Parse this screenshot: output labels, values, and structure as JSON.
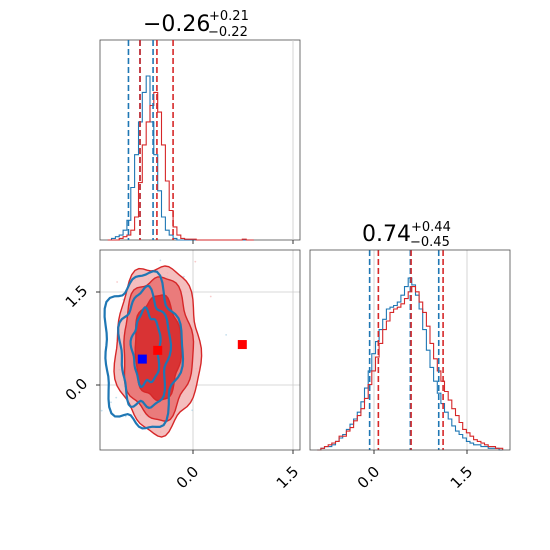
{
  "chart_data": [
    {
      "type": "histogram",
      "panel": "top-left",
      "title_value": "−0.26",
      "title_plus": "+0.21",
      "title_minus": "−0.22",
      "xlim": [
        -1.0,
        1.6
      ],
      "bins": [
        -0.9,
        -0.85,
        -0.8,
        -0.75,
        -0.7,
        -0.65,
        -0.6,
        -0.55,
        -0.5,
        -0.45,
        -0.4,
        -0.35,
        -0.3,
        -0.25,
        -0.2,
        -0.15,
        -0.1,
        -0.05,
        0.0,
        0.05,
        0.1,
        0.15,
        0.2,
        0.25,
        0.3,
        0.35,
        0.4,
        0.45,
        0.5,
        0.55,
        0.6,
        0.65,
        0.7,
        0.75,
        0.8,
        0.85,
        0.9,
        0.95,
        1.0
      ],
      "series": [
        {
          "color": "#1f77b4",
          "values": [
            0,
            0.01,
            0.02,
            0.03,
            0.06,
            0.12,
            0.32,
            0.52,
            0.72,
            0.9,
            1.0,
            0.72,
            0.52,
            0.3,
            0.14,
            0.06,
            0.03,
            0.01,
            0,
            0,
            0,
            0,
            0,
            0,
            0,
            0,
            0,
            0,
            0,
            0,
            0,
            0,
            0,
            0,
            0,
            0,
            0,
            0
          ]
        },
        {
          "color": "#d62728",
          "values": [
            0,
            0,
            0,
            0.01,
            0.02,
            0.03,
            0.06,
            0.14,
            0.35,
            0.58,
            0.72,
            0.82,
            0.9,
            0.78,
            0.58,
            0.36,
            0.18,
            0.08,
            0.03,
            0.01,
            0.005,
            0.005,
            0.005,
            0,
            0,
            0,
            0,
            0,
            0,
            0,
            0,
            0,
            0,
            0,
            0,
            0.005,
            0,
            0
          ]
        }
      ],
      "quantile_lines": [
        {
          "color": "#1f77b4",
          "x": [
            -0.63,
            -0.48,
            -0.31
          ]
        },
        {
          "color": "#d62728",
          "x": [
            -0.48,
            -0.26,
            -0.05
          ]
        }
      ]
    },
    {
      "type": "contour",
      "panel": "bottom-left",
      "xlim": [
        -1.0,
        1.6
      ],
      "ylim": [
        -0.65,
        2.1
      ],
      "yticks": [
        "1.5",
        "0.0"
      ],
      "xticks": [
        "0.0",
        "1.5"
      ],
      "red_levels": [
        {
          "cx": -0.25,
          "cy": 0.75,
          "rx": 0.55,
          "ry": 1.15
        },
        {
          "cx": -0.25,
          "cy": 0.75,
          "rx": 0.45,
          "ry": 0.98
        },
        {
          "cx": -0.25,
          "cy": 0.75,
          "rx": 0.3,
          "ry": 0.72
        }
      ],
      "blue_levels": [
        {
          "cx": -0.45,
          "cy": 0.7,
          "rx": 0.5,
          "ry": 1.05
        },
        {
          "cx": -0.42,
          "cy": 0.72,
          "rx": 0.32,
          "ry": 0.8
        },
        {
          "cx": -0.4,
          "cy": 0.75,
          "rx": 0.18,
          "ry": 0.5
        }
      ],
      "markers": [
        {
          "color": "#ff0000",
          "x": -0.25,
          "y": 0.72
        },
        {
          "color": "#0000ff",
          "x": -0.45,
          "y": 0.6
        },
        {
          "color": "#ff0000",
          "x": 0.85,
          "y": 0.8
        }
      ]
    },
    {
      "type": "histogram",
      "panel": "bottom-right",
      "title_value": "0.74",
      "title_plus": "+0.44",
      "title_minus": "−0.45",
      "xlim": [
        -0.65,
        2.1
      ],
      "xticks": [
        "0.0",
        "1.5"
      ],
      "bins": [
        -0.55,
        -0.5,
        -0.45,
        -0.4,
        -0.35,
        -0.3,
        -0.25,
        -0.2,
        -0.15,
        -0.1,
        -0.05,
        0.0,
        0.05,
        0.1,
        0.15,
        0.2,
        0.25,
        0.3,
        0.35,
        0.4,
        0.45,
        0.5,
        0.55,
        0.6,
        0.65,
        0.7,
        0.75,
        0.8,
        0.85,
        0.9,
        0.95,
        1.0,
        1.05,
        1.1,
        1.15,
        1.2,
        1.25,
        1.3,
        1.35,
        1.4,
        1.45,
        1.5,
        1.55,
        1.6,
        1.65,
        1.7,
        1.75,
        1.8,
        1.85,
        1.9,
        1.95,
        2.0
      ],
      "series": [
        {
          "color": "#1f77b4",
          "values": [
            0.0,
            0.01,
            0.02,
            0.02,
            0.03,
            0.05,
            0.07,
            0.09,
            0.12,
            0.15,
            0.18,
            0.22,
            0.28,
            0.36,
            0.46,
            0.56,
            0.63,
            0.7,
            0.76,
            0.82,
            0.83,
            0.84,
            0.86,
            0.9,
            0.95,
            1.0,
            0.96,
            0.9,
            0.82,
            0.7,
            0.58,
            0.48,
            0.4,
            0.33,
            0.27,
            0.22,
            0.18,
            0.14,
            0.11,
            0.09,
            0.07,
            0.05,
            0.04,
            0.03,
            0.03,
            0.02,
            0.02,
            0.01,
            0.01,
            0.01,
            0.0
          ]
        },
        {
          "color": "#d62728",
          "values": [
            0.0,
            0.01,
            0.02,
            0.03,
            0.04,
            0.05,
            0.08,
            0.08,
            0.11,
            0.13,
            0.17,
            0.2,
            0.24,
            0.3,
            0.38,
            0.46,
            0.54,
            0.62,
            0.7,
            0.75,
            0.8,
            0.82,
            0.83,
            0.85,
            0.88,
            0.92,
            0.95,
            0.92,
            0.86,
            0.8,
            0.72,
            0.62,
            0.53,
            0.46,
            0.4,
            0.34,
            0.29,
            0.24,
            0.2,
            0.16,
            0.12,
            0.1,
            0.08,
            0.06,
            0.05,
            0.04,
            0.03,
            0.02,
            0.02,
            0.01,
            0.01
          ]
        }
      ],
      "quantile_lines": [
        {
          "color": "#1f77b4",
          "x": [
            0.17,
            0.73,
            1.12
          ]
        },
        {
          "color": "#d62728",
          "x": [
            0.29,
            0.74,
            1.18
          ]
        }
      ]
    }
  ]
}
